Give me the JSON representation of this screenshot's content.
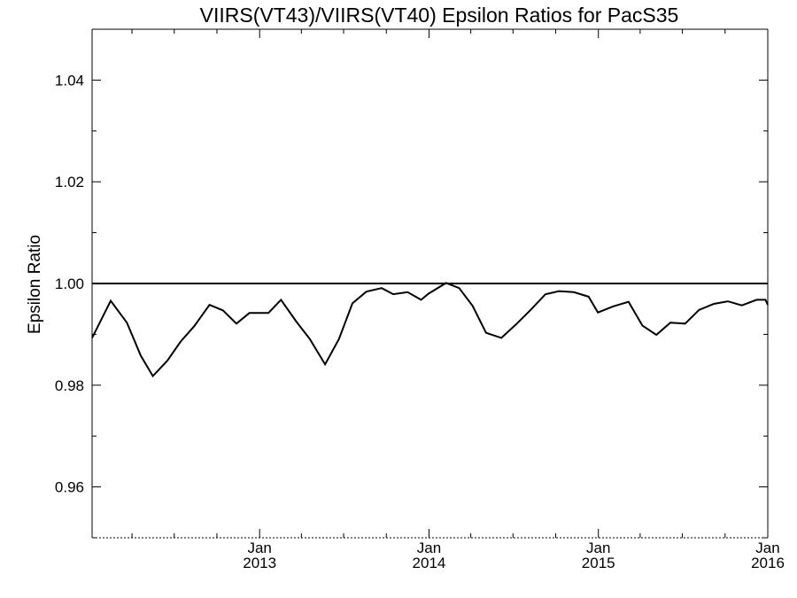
{
  "chart_data": {
    "type": "line",
    "title": "VIIRS(VT43)/VIIRS(VT40)  Epsilon Ratios for PacS35",
    "xlabel": "",
    "ylabel": "Epsilon Ratio",
    "xlim": [
      "2012-01-06",
      "2016-01-01"
    ],
    "ylim": [
      0.95,
      1.05
    ],
    "grid": false,
    "legend": "none",
    "line_color": "#000000",
    "yticks": [
      {
        "value": 0.96,
        "label": "0.96"
      },
      {
        "value": 0.98,
        "label": "0.98"
      },
      {
        "value": 1.0,
        "label": "1.00"
      },
      {
        "value": 1.02,
        "label": "1.02"
      },
      {
        "value": 1.04,
        "label": "1.04"
      }
    ],
    "xticks": [
      {
        "date": "2013-01-01",
        "month": "Jan",
        "year": "2013"
      },
      {
        "date": "2014-01-01",
        "month": "Jan",
        "year": "2014"
      },
      {
        "date": "2015-01-01",
        "month": "Jan",
        "year": "2015"
      },
      {
        "date": "2016-01-01",
        "month": "Jan",
        "year": "2016"
      }
    ],
    "reference_line": {
      "y": 1.0
    },
    "series": [
      {
        "x": [
          "2012-01-06",
          "2012-02-15",
          "2012-03-21",
          "2012-04-20",
          "2012-05-16",
          "2012-06-16",
          "2012-07-15",
          "2012-08-13",
          "2012-09-15",
          "2012-10-14",
          "2012-11-12",
          "2012-12-10",
          "2012-12-29",
          "2013-01-20",
          "2013-02-16",
          "2013-03-21",
          "2013-04-19",
          "2013-05-22",
          "2013-06-21",
          "2013-07-20",
          "2013-08-19",
          "2013-09-21",
          "2013-10-16",
          "2013-11-16",
          "2013-12-15",
          "2013-12-31",
          "2014-02-07",
          "2014-03-07",
          "2014-04-05",
          "2014-05-04",
          "2014-06-06",
          "2014-07-08",
          "2014-08-08",
          "2014-09-09",
          "2014-10-08",
          "2014-11-09",
          "2014-12-11",
          "2014-12-31",
          "2015-02-02",
          "2015-03-07",
          "2015-04-06",
          "2015-05-06",
          "2015-06-05",
          "2015-07-07",
          "2015-08-06",
          "2015-09-07",
          "2015-10-07",
          "2015-11-06",
          "2015-12-08",
          "2015-12-27",
          "2016-01-01"
        ],
        "y": [
          0.9893,
          0.9966,
          0.9923,
          0.9858,
          0.9818,
          0.9848,
          0.9886,
          0.9916,
          0.9958,
          0.9947,
          0.9921,
          0.9942,
          0.9942,
          0.9942,
          0.9968,
          0.9925,
          0.9891,
          0.9841,
          0.9891,
          0.9961,
          0.9984,
          0.9991,
          0.9979,
          0.9983,
          0.9968,
          0.998,
          1.0001,
          0.9991,
          0.9956,
          0.9903,
          0.9893,
          0.992,
          0.9948,
          0.9979,
          0.9985,
          0.9983,
          0.9974,
          0.9943,
          0.9955,
          0.9964,
          0.9917,
          0.9899,
          0.9923,
          0.9921,
          0.9948,
          0.996,
          0.9965,
          0.9957,
          0.9968,
          0.9968,
          0.9958
        ]
      }
    ]
  }
}
